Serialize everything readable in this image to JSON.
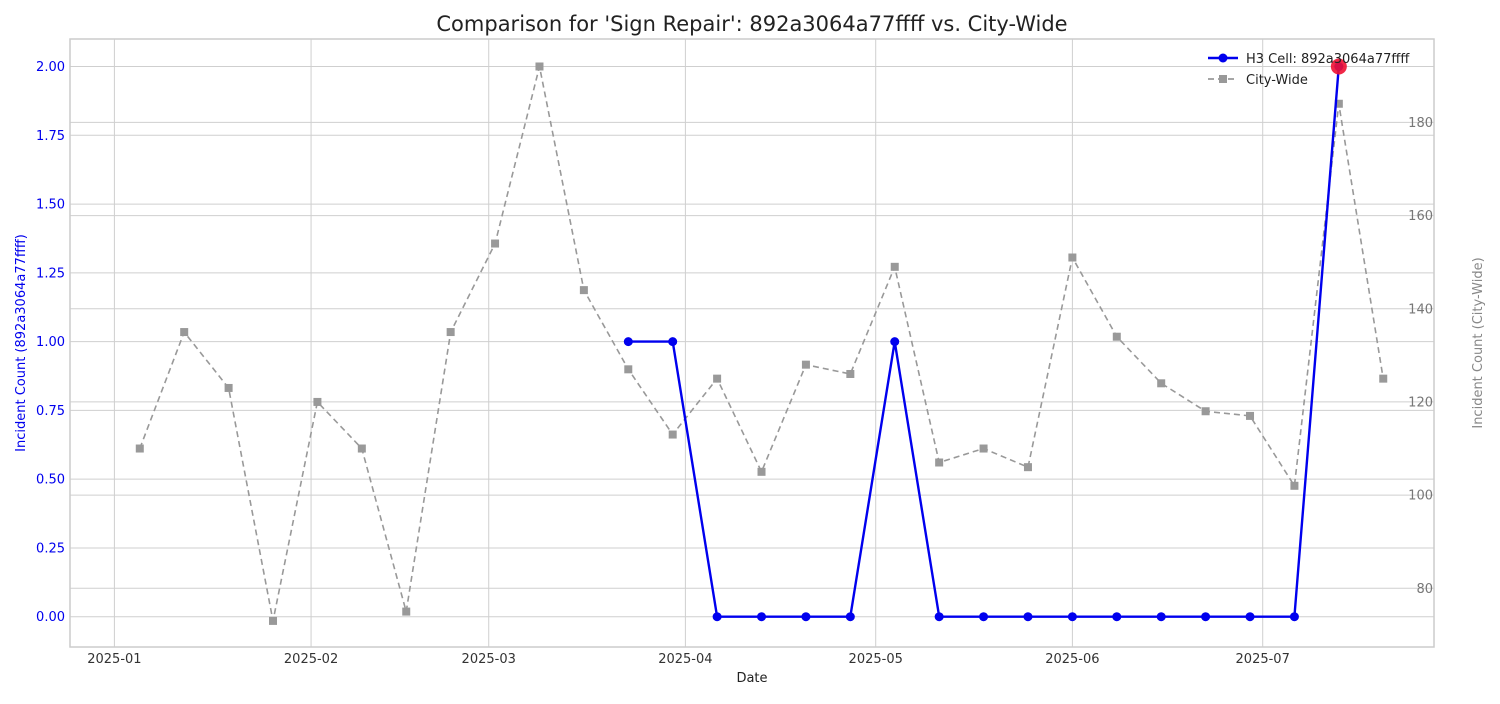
{
  "chart_data": {
    "type": "line",
    "title": "Comparison for 'Sign Repair': 892a3064a77ffff vs. City-Wide",
    "xlabel": "Date",
    "ylabel_left": "Incident Count (892a3064a77ffff)",
    "ylabel_right": "Incident Count (City-Wide)",
    "xlim": [
      "2024-12-25",
      "2025-07-28"
    ],
    "ylim_left": [
      -0.11,
      2.1
    ],
    "ylim_right": [
      67.4,
      197.9
    ],
    "x_ticks": [
      {
        "date": "2025-01-01",
        "label": "2025-01"
      },
      {
        "date": "2025-02-01",
        "label": "2025-02"
      },
      {
        "date": "2025-03-01",
        "label": "2025-03"
      },
      {
        "date": "2025-04-01",
        "label": "2025-04"
      },
      {
        "date": "2025-05-01",
        "label": "2025-05"
      },
      {
        "date": "2025-06-01",
        "label": "2025-06"
      },
      {
        "date": "2025-07-01",
        "label": "2025-07"
      }
    ],
    "y_ticks_left": [
      {
        "value": 0.0,
        "label": "0.00"
      },
      {
        "value": 0.25,
        "label": "0.25"
      },
      {
        "value": 0.5,
        "label": "0.50"
      },
      {
        "value": 0.75,
        "label": "0.75"
      },
      {
        "value": 1.0,
        "label": "1.00"
      },
      {
        "value": 1.25,
        "label": "1.25"
      },
      {
        "value": 1.5,
        "label": "1.50"
      },
      {
        "value": 1.75,
        "label": "1.75"
      },
      {
        "value": 2.0,
        "label": "2.00"
      }
    ],
    "y_ticks_right": [
      {
        "value": 80,
        "label": "80"
      },
      {
        "value": 100,
        "label": "100"
      },
      {
        "value": 120,
        "label": "120"
      },
      {
        "value": 140,
        "label": "140"
      },
      {
        "value": 160,
        "label": "160"
      },
      {
        "value": 180,
        "label": "180"
      }
    ],
    "grid": true,
    "legend_position": "top-right",
    "series": [
      {
        "name": "H3 Cell: 892a3064a77ffff",
        "axis": "left",
        "color": "#0000ee",
        "line_style": "solid",
        "marker": "circle",
        "points": [
          {
            "x": "2025-03-23",
            "y": 1
          },
          {
            "x": "2025-03-30",
            "y": 1
          },
          {
            "x": "2025-04-06",
            "y": 0
          },
          {
            "x": "2025-04-13",
            "y": 0
          },
          {
            "x": "2025-04-20",
            "y": 0
          },
          {
            "x": "2025-04-27",
            "y": 0
          },
          {
            "x": "2025-05-04",
            "y": 1
          },
          {
            "x": "2025-05-11",
            "y": 0
          },
          {
            "x": "2025-05-18",
            "y": 0
          },
          {
            "x": "2025-05-25",
            "y": 0
          },
          {
            "x": "2025-06-01",
            "y": 0
          },
          {
            "x": "2025-06-08",
            "y": 0
          },
          {
            "x": "2025-06-15",
            "y": 0
          },
          {
            "x": "2025-06-22",
            "y": 0
          },
          {
            "x": "2025-06-29",
            "y": 0
          },
          {
            "x": "2025-07-06",
            "y": 0
          },
          {
            "x": "2025-07-13",
            "y": 2
          }
        ]
      },
      {
        "name": "City-Wide",
        "axis": "right",
        "color": "#999999",
        "line_style": "dashed",
        "marker": "square",
        "points": [
          {
            "x": "2025-01-05",
            "y": 110
          },
          {
            "x": "2025-01-12",
            "y": 135
          },
          {
            "x": "2025-01-19",
            "y": 123
          },
          {
            "x": "2025-01-26",
            "y": 73
          },
          {
            "x": "2025-02-02",
            "y": 120
          },
          {
            "x": "2025-02-09",
            "y": 110
          },
          {
            "x": "2025-02-16",
            "y": 75
          },
          {
            "x": "2025-02-23",
            "y": 135
          },
          {
            "x": "2025-03-02",
            "y": 154
          },
          {
            "x": "2025-03-09",
            "y": 192
          },
          {
            "x": "2025-03-16",
            "y": 144
          },
          {
            "x": "2025-03-23",
            "y": 127
          },
          {
            "x": "2025-03-30",
            "y": 113
          },
          {
            "x": "2025-04-06",
            "y": 125
          },
          {
            "x": "2025-04-13",
            "y": 105
          },
          {
            "x": "2025-04-20",
            "y": 128
          },
          {
            "x": "2025-04-27",
            "y": 126
          },
          {
            "x": "2025-05-04",
            "y": 149
          },
          {
            "x": "2025-05-11",
            "y": 107
          },
          {
            "x": "2025-05-18",
            "y": 110
          },
          {
            "x": "2025-05-25",
            "y": 106
          },
          {
            "x": "2025-06-01",
            "y": 151
          },
          {
            "x": "2025-06-08",
            "y": 134
          },
          {
            "x": "2025-06-15",
            "y": 124
          },
          {
            "x": "2025-06-22",
            "y": 118
          },
          {
            "x": "2025-06-29",
            "y": 117
          },
          {
            "x": "2025-07-06",
            "y": 102
          },
          {
            "x": "2025-07-13",
            "y": 184
          },
          {
            "x": "2025-07-20",
            "y": 125
          }
        ]
      }
    ],
    "highlight": {
      "series": "H3 Cell: 892a3064a77ffff",
      "x": "2025-07-13",
      "y": 2,
      "color": "#ee1133"
    }
  }
}
